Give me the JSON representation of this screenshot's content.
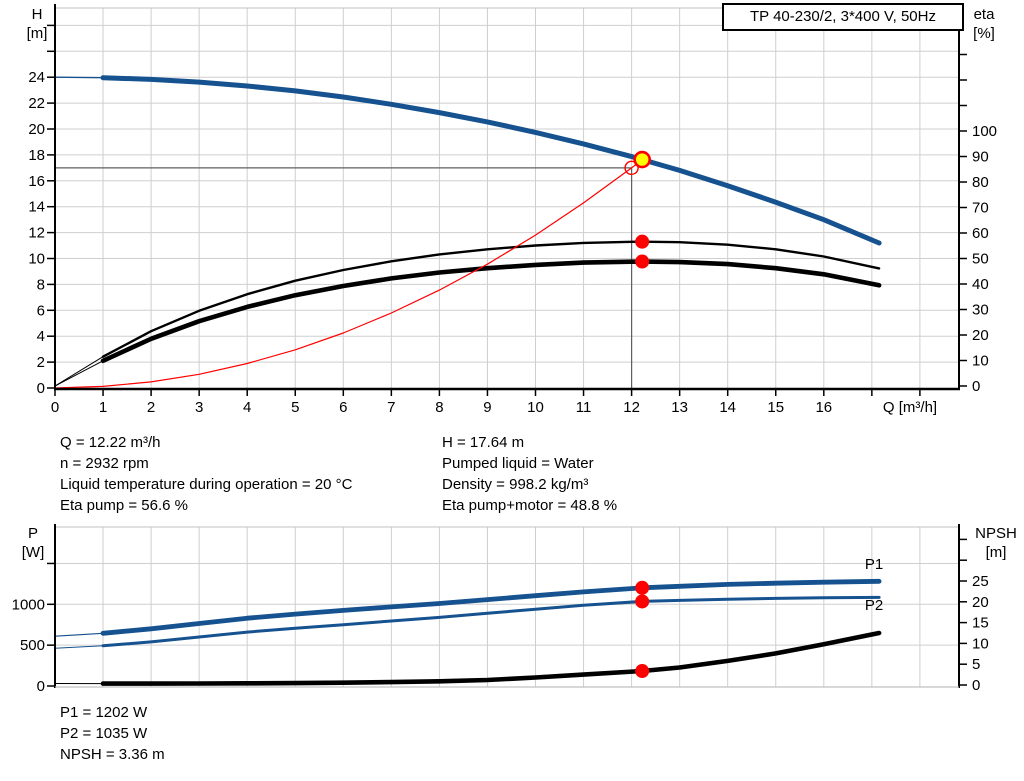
{
  "title_box": {
    "label": "TP 40-230/2, 3*400 V, 50Hz"
  },
  "colors": {
    "curve_blue": "#15528f",
    "red": "#ff0000",
    "yellow": "#ffff00",
    "grid": "#cfcfcf",
    "light_border": "#c0c0c0",
    "crosshair": "#5f5f5f",
    "axis": "#000000"
  },
  "top_chart": {
    "h_title": "H",
    "h_unit": "[m]",
    "eta_title": "eta",
    "eta_unit": "[%]",
    "q_title": "Q [m³/h]",
    "h_ticks": [
      0,
      2,
      4,
      6,
      8,
      10,
      12,
      14,
      16,
      18,
      20,
      22,
      24
    ],
    "h_ticks_unlabeled": [
      26,
      28
    ],
    "eta_ticks": [
      0,
      10,
      20,
      30,
      40,
      50,
      60,
      70,
      80,
      90,
      100
    ],
    "eta_ticks_unlabeled": [
      110,
      120,
      130
    ],
    "q_ticks": [
      0,
      1,
      2,
      3,
      4,
      5,
      6,
      7,
      8,
      9,
      10,
      11,
      12,
      13,
      14,
      15,
      16
    ],
    "q_ticks_unlabeled": [
      17,
      18
    ]
  },
  "bottom_chart": {
    "p_title": "P",
    "p_unit": "[W]",
    "npsh_title": "NPSH",
    "npsh_unit": "[m]",
    "p_ticks": [
      0,
      500,
      1000
    ],
    "p_ticks_unlabeled": [
      1500
    ],
    "npsh_ticks": [
      0,
      5,
      10,
      15,
      20,
      25
    ],
    "npsh_ticks_unlabeled": [
      30,
      35
    ],
    "p1_label": "P1",
    "p2_label": "P2"
  },
  "chart_data": [
    {
      "type": "line",
      "title": "TP 40-230/2, 3*400 V, 50Hz",
      "xlabel": "Q [m³/h]",
      "ylabel_left": "H [m]",
      "ylabel_right": "eta [%]",
      "x_range": [
        0,
        18.8
      ],
      "h_range": [
        0,
        29.3
      ],
      "eta_range": [
        0,
        148
      ],
      "grid": true,
      "series": [
        {
          "name": "h-q-curve",
          "axis": "H",
          "x": [
            0,
            1,
            2,
            3,
            4,
            5,
            6,
            7,
            8,
            9,
            10,
            11,
            12,
            12.22,
            13,
            14,
            15,
            16,
            17.15
          ],
          "y": [
            24,
            23.96,
            23.83,
            23.62,
            23.32,
            22.94,
            22.47,
            21.91,
            21.27,
            20.55,
            19.74,
            18.85,
            17.87,
            17.64,
            16.8,
            15.62,
            14.35,
            13.0,
            11.2
          ]
        },
        {
          "name": "eta-pump-curve",
          "axis": "eta",
          "x": [
            0,
            1,
            2,
            3,
            4,
            5,
            6,
            7,
            8,
            9,
            10,
            11,
            12,
            12.22,
            13,
            14,
            15,
            16,
            17.15
          ],
          "y": [
            0,
            11.5,
            21.5,
            29.5,
            36.0,
            41.3,
            45.5,
            48.9,
            51.6,
            53.6,
            55.1,
            56.1,
            56.55,
            56.6,
            56.4,
            55.4,
            53.6,
            50.8,
            46.1
          ]
        },
        {
          "name": "eta-pump-motor-curve",
          "axis": "eta",
          "x": [
            0,
            1,
            2,
            3,
            4,
            5,
            6,
            7,
            8,
            9,
            10,
            11,
            12,
            12.22,
            13,
            14,
            15,
            16,
            17.15
          ],
          "y": [
            0,
            9.9,
            18.5,
            25.4,
            31.0,
            35.6,
            39.2,
            42.2,
            44.5,
            46.2,
            47.5,
            48.4,
            48.75,
            48.8,
            48.6,
            47.8,
            46.2,
            43.8,
            39.5
          ]
        },
        {
          "name": "system-curve",
          "axis": "H",
          "x": [
            0,
            1,
            2,
            3,
            4,
            5,
            6,
            7,
            8,
            9,
            10,
            11,
            12,
            12.22
          ],
          "y": [
            0,
            0.12,
            0.47,
            1.06,
            1.89,
            2.95,
            4.25,
            5.79,
            7.56,
            9.56,
            11.81,
            14.29,
            17.0,
            17.64
          ]
        }
      ],
      "markers": {
        "duty_point": {
          "q": 12.22,
          "h": 17.64
        },
        "requested_point": {
          "q": 12.0,
          "h": 17.0
        },
        "eta_pump_point": {
          "q": 12.22,
          "eta": 56.6
        },
        "eta_pump_motor_point": {
          "q": 12.22,
          "eta": 48.8
        }
      }
    },
    {
      "type": "line",
      "xlabel": "Q [m³/h]",
      "ylabel_left": "P [W]",
      "ylabel_right": "NPSH [m]",
      "x_range": [
        0,
        18.8
      ],
      "p_range": [
        0,
        1950
      ],
      "npsh_range": [
        0,
        38.5
      ],
      "grid": true,
      "series": [
        {
          "name": "p1-curve",
          "axis": "P",
          "x": [
            0,
            1,
            2,
            3,
            4,
            5,
            6,
            7,
            8,
            9,
            10,
            11,
            12.22,
            13,
            14,
            15,
            16,
            17.15
          ],
          "y": [
            610,
            645,
            700,
            765,
            830,
            880,
            925,
            968,
            1010,
            1058,
            1105,
            1152,
            1202,
            1220,
            1243,
            1258,
            1270,
            1281
          ]
        },
        {
          "name": "p2-curve",
          "axis": "P",
          "x": [
            0,
            1,
            2,
            3,
            4,
            5,
            6,
            7,
            8,
            9,
            10,
            11,
            12.22,
            13,
            14,
            15,
            16,
            17.15
          ],
          "y": [
            463,
            492,
            540,
            600,
            660,
            707,
            750,
            795,
            840,
            890,
            940,
            988,
            1035,
            1048,
            1062,
            1072,
            1080,
            1085
          ]
        },
        {
          "name": "npsh-curve",
          "axis": "NPSH",
          "x": [
            0,
            1,
            2,
            3,
            4,
            5,
            6,
            7,
            8,
            9,
            10,
            11,
            12.22,
            13,
            14,
            15,
            16,
            17.15
          ],
          "y": [
            0.35,
            0.33,
            0.33,
            0.35,
            0.4,
            0.45,
            0.55,
            0.7,
            0.9,
            1.2,
            1.8,
            2.5,
            3.36,
            4.2,
            5.8,
            7.6,
            9.8,
            12.5
          ]
        }
      ],
      "markers": {
        "p1_point": {
          "q": 12.22,
          "p": 1202
        },
        "p2_point": {
          "q": 12.22,
          "p": 1035
        },
        "npsh_point": {
          "q": 12.22,
          "npsh": 3.36
        }
      }
    }
  ],
  "info_block": {
    "left": [
      "Q = 12.22 m³/h",
      "n = 2932 rpm",
      "Liquid temperature during operation = 20 °C",
      "Eta pump = 56.6 %"
    ],
    "right": [
      "H = 17.64 m",
      "Pumped liquid = Water",
      "Density = 998.2 kg/m³",
      "Eta pump+motor = 48.8 %"
    ]
  },
  "result_block": [
    "P1 = 1202 W",
    "P2 = 1035 W",
    "NPSH = 3.36 m"
  ]
}
